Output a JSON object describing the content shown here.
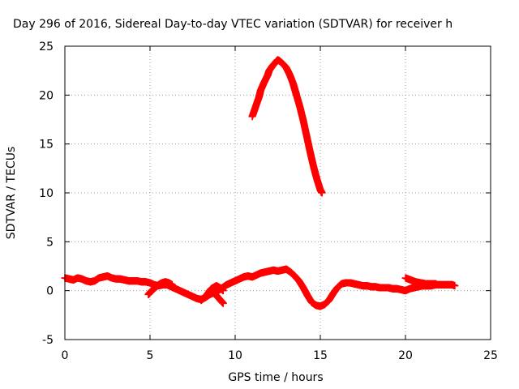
{
  "chart_data": {
    "type": "scatter",
    "title": "Day 296 of 2016, Sidereal Day-to-day VTEC variation (SDTVAR) for receiver h",
    "xlabel": "GPS time / hours",
    "ylabel": "SDTVAR / TECUs",
    "xlim": [
      0,
      25
    ],
    "ylim": [
      -5,
      25
    ],
    "x_ticks": [
      0,
      5,
      10,
      15,
      20,
      25
    ],
    "y_ticks": [
      -5,
      0,
      5,
      10,
      15,
      20,
      25
    ],
    "grid": true,
    "legend": "none",
    "marker": "plus",
    "series_color": "#ff0000",
    "series": [
      {
        "x": [
          0.0,
          0.25,
          0.5,
          0.75,
          1.0,
          1.25,
          1.5,
          1.75,
          2.0,
          2.25,
          2.5,
          2.75,
          3.0,
          3.25,
          3.5,
          3.75,
          4.0,
          4.25,
          4.5,
          4.75,
          5.0,
          5.25,
          5.5,
          5.75,
          6.0,
          6.25,
          6.5,
          6.75,
          7.0,
          7.25,
          7.5,
          7.75,
          8.0,
          8.25,
          8.5,
          8.75,
          9.0,
          9.25,
          9.5,
          9.75,
          10.0,
          10.25,
          10.5,
          10.75,
          11.0,
          11.25,
          11.5,
          11.75,
          12.0,
          12.25,
          12.5,
          12.75,
          13.0,
          13.25,
          13.5,
          13.75,
          14.0,
          14.25,
          14.5,
          14.75,
          15.0,
          15.25,
          15.5,
          15.75,
          16.0,
          16.25,
          16.5,
          16.75,
          17.0,
          17.25,
          17.5,
          17.75,
          18.0,
          18.25,
          18.5,
          18.75,
          19.0,
          19.25,
          19.5,
          19.75,
          20.0,
          20.25,
          20.5,
          20.75,
          21.0,
          21.25,
          21.5,
          21.75,
          22.0,
          22.25,
          22.5,
          22.75,
          22.9
        ],
        "y": [
          1.3,
          1.2,
          1.1,
          1.3,
          1.2,
          1.0,
          0.9,
          1.0,
          1.3,
          1.4,
          1.5,
          1.3,
          1.2,
          1.2,
          1.1,
          1.0,
          1.0,
          1.0,
          0.9,
          0.9,
          0.8,
          0.6,
          0.5,
          0.6,
          0.6,
          0.4,
          0.2,
          0.0,
          -0.2,
          -0.4,
          -0.6,
          -0.8,
          -0.9,
          -0.7,
          -0.4,
          -0.2,
          0.0,
          0.3,
          0.6,
          0.8,
          1.0,
          1.2,
          1.4,
          1.5,
          1.4,
          1.6,
          1.8,
          1.9,
          2.0,
          2.1,
          2.0,
          2.1,
          2.2,
          1.9,
          1.5,
          1.0,
          0.3,
          -0.5,
          -1.2,
          -1.5,
          -1.6,
          -1.4,
          -1.0,
          -0.3,
          0.3,
          0.7,
          0.8,
          0.8,
          0.7,
          0.6,
          0.5,
          0.5,
          0.4,
          0.4,
          0.3,
          0.3,
          0.3,
          0.2,
          0.2,
          0.1,
          0.0,
          0.2,
          0.3,
          0.4,
          0.5,
          0.5,
          0.5,
          0.6,
          0.6,
          0.6,
          0.6,
          0.6,
          0.5
        ]
      },
      {
        "x": [
          4.9,
          5.1,
          5.3,
          5.5,
          5.7,
          5.9,
          6.1,
          6.3
        ],
        "y": [
          -0.4,
          0.0,
          0.3,
          0.6,
          0.8,
          0.9,
          0.8,
          0.6
        ]
      },
      {
        "x": [
          8.0,
          8.3,
          8.6,
          8.9,
          9.1,
          9.3
        ],
        "y": [
          -1.0,
          -0.5,
          0.2,
          0.5,
          0.3,
          0.0
        ]
      },
      {
        "x": [
          9.3,
          9.1,
          8.9,
          8.7,
          8.5
        ],
        "y": [
          -1.3,
          -0.9,
          -0.5,
          -0.2,
          0.0
        ]
      },
      {
        "x": [
          20.0,
          20.3,
          20.6,
          20.9,
          21.2,
          21.5,
          21.8
        ],
        "y": [
          1.3,
          1.1,
          0.9,
          0.8,
          0.7,
          0.7,
          0.7
        ]
      },
      {
        "x": [
          11.0,
          11.2,
          11.4,
          11.5,
          11.7,
          11.9,
          12.0,
          12.2,
          12.4,
          12.5,
          12.6,
          12.8,
          13.0,
          13.2,
          13.4,
          13.5,
          13.6,
          13.8,
          14.0,
          14.2,
          14.4,
          14.6,
          14.8,
          15.0,
          15.1
        ],
        "y": [
          17.8,
          18.8,
          19.8,
          20.5,
          21.3,
          22.0,
          22.5,
          23.0,
          23.4,
          23.6,
          23.5,
          23.2,
          22.8,
          22.1,
          21.2,
          20.6,
          20.0,
          18.8,
          17.4,
          15.8,
          14.2,
          12.7,
          11.4,
          10.3,
          10.0
        ]
      }
    ]
  }
}
